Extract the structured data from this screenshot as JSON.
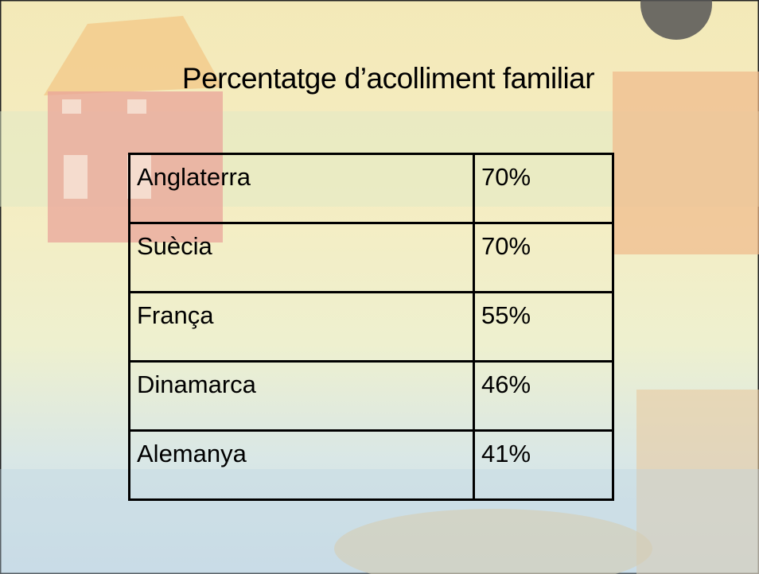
{
  "title": "Percentatge d’acolliment familiar",
  "table": {
    "rows": [
      [
        "Anglaterra",
        "70%"
      ],
      [
        "Suècia",
        "70%"
      ],
      [
        "França",
        "55%"
      ],
      [
        "Dinamarca",
        "46%"
      ],
      [
        "Alemanya",
        "41%"
      ]
    ]
  }
}
